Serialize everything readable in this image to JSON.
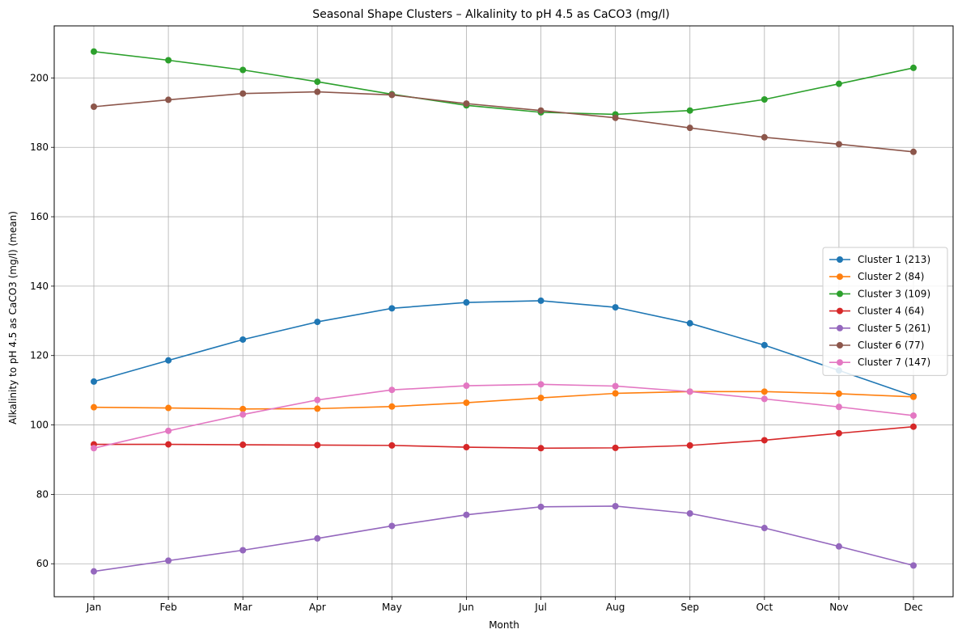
{
  "chart_data": {
    "type": "line",
    "title": "Seasonal Shape Clusters – Alkalinity to pH 4.5 as CaCO3 (mg/l)",
    "xlabel": "Month",
    "ylabel": "Alkalinity to pH 4.5 as CaCO3 (mg/l) (mean)",
    "categories": [
      "Jan",
      "Feb",
      "Mar",
      "Apr",
      "May",
      "Jun",
      "Jul",
      "Aug",
      "Sep",
      "Oct",
      "Nov",
      "Dec"
    ],
    "ylim": [
      50.5,
      215
    ],
    "yticks": [
      60,
      80,
      100,
      120,
      140,
      160,
      180,
      200
    ],
    "grid": true,
    "legend_position": "center-right",
    "series": [
      {
        "name": "Cluster 1 (213)",
        "color": "#1f77b4",
        "values": [
          112.5,
          118.6,
          124.6,
          129.7,
          133.6,
          135.3,
          135.8,
          133.9,
          129.3,
          123.0,
          115.7,
          108.3
        ]
      },
      {
        "name": "Cluster 2 (84)",
        "color": "#ff7f0e",
        "values": [
          105.1,
          104.9,
          104.6,
          104.7,
          105.3,
          106.4,
          107.8,
          109.1,
          109.6,
          109.6,
          109.0,
          108.1
        ]
      },
      {
        "name": "Cluster 3 (109)",
        "color": "#2ca02c",
        "values": [
          207.6,
          205.1,
          202.3,
          198.9,
          195.3,
          192.1,
          190.1,
          189.5,
          190.6,
          193.8,
          198.3,
          202.9
        ]
      },
      {
        "name": "Cluster 4 (64)",
        "color": "#d62728",
        "values": [
          94.4,
          94.4,
          94.3,
          94.2,
          94.1,
          93.6,
          93.3,
          93.4,
          94.1,
          95.6,
          97.6,
          99.5
        ]
      },
      {
        "name": "Cluster 5 (261)",
        "color": "#9467bd",
        "values": [
          57.8,
          60.9,
          63.9,
          67.3,
          70.9,
          74.1,
          76.4,
          76.6,
          74.5,
          70.3,
          65.0,
          59.5
        ]
      },
      {
        "name": "Cluster 6 (77)",
        "color": "#8c564b",
        "values": [
          191.7,
          193.7,
          195.5,
          196.0,
          195.1,
          192.6,
          190.6,
          188.5,
          185.6,
          182.9,
          180.9,
          178.7
        ]
      },
      {
        "name": "Cluster 7 (147)",
        "color": "#e377c2",
        "values": [
          93.3,
          98.3,
          103.0,
          107.2,
          110.1,
          111.3,
          111.7,
          111.2,
          109.6,
          107.5,
          105.2,
          102.7
        ]
      }
    ]
  }
}
